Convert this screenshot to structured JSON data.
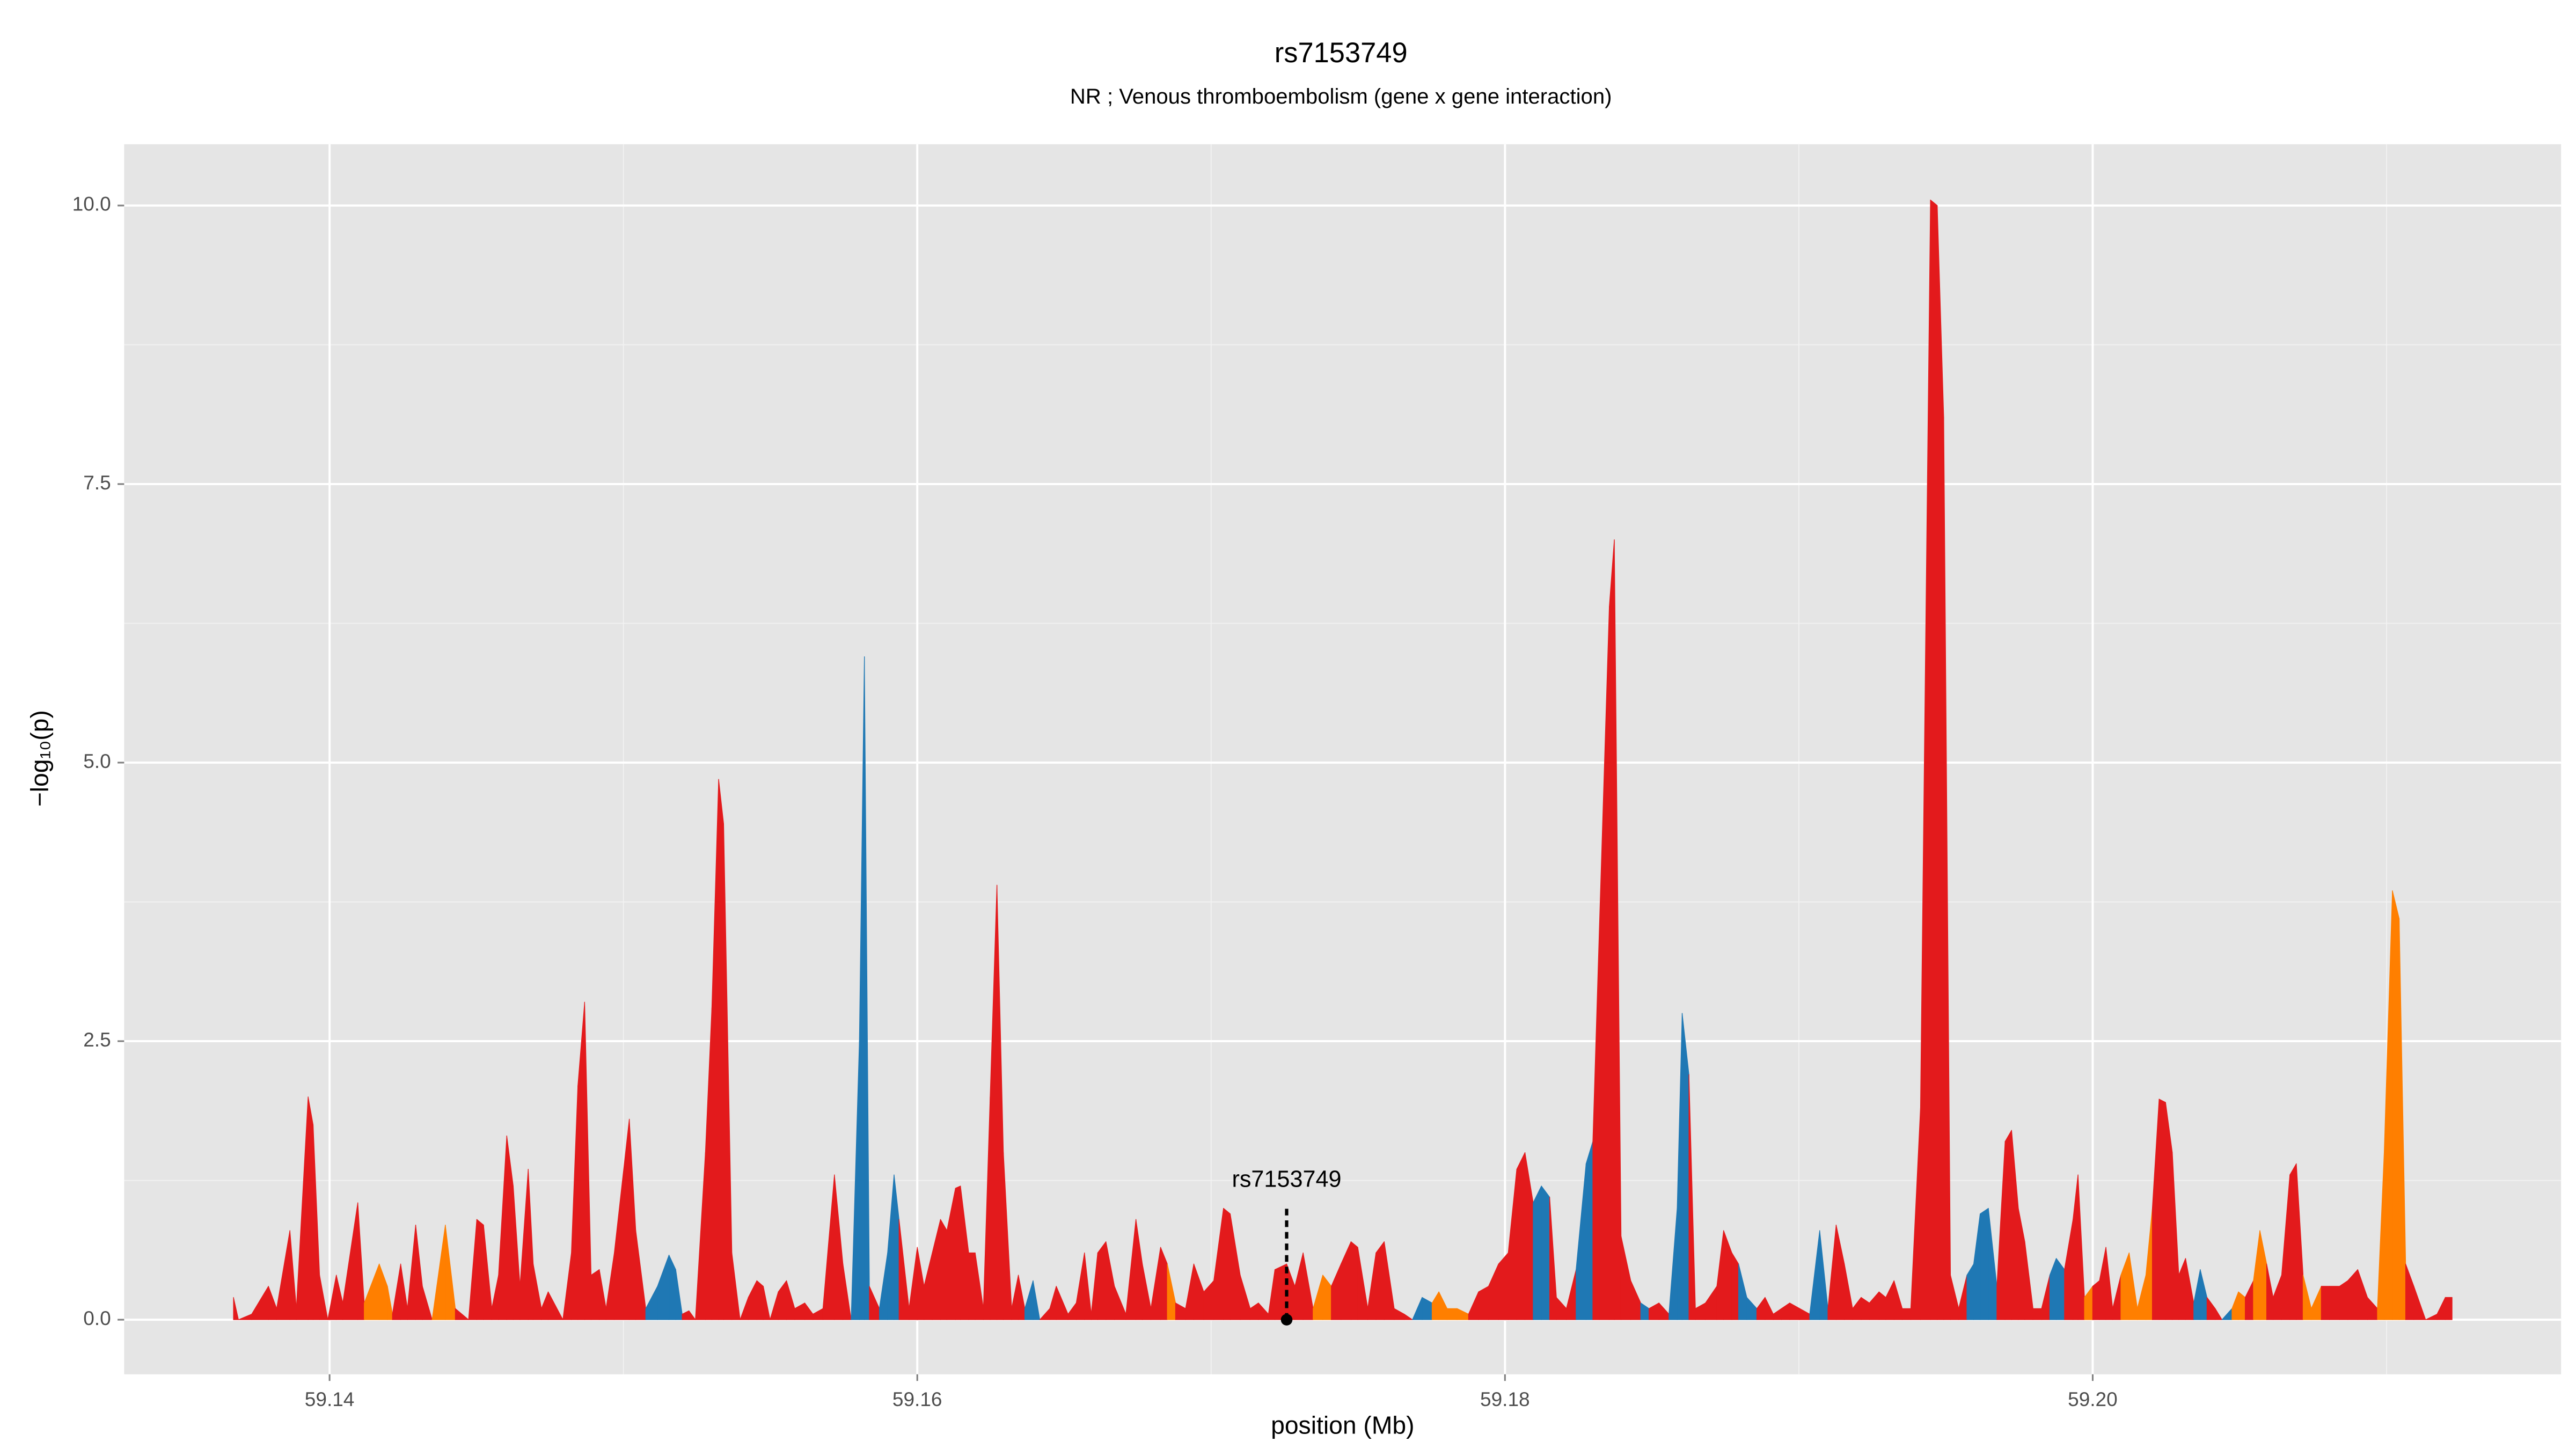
{
  "chart_data": {
    "type": "area",
    "title": "rs7153749",
    "subtitle": "NR ; Venous thromboembolism (gene x gene interaction)",
    "xlabel": "position (Mb)",
    "ylabel": "−log₁₀(p)",
    "xlim": [
      59.13301,
      59.21594
    ],
    "ylim": [
      -0.49,
      10.55
    ],
    "xticks": [
      59.14,
      59.16,
      59.18,
      {
        "value": 59.2,
        "label": "59.20"
      }
    ],
    "yticks": [
      {
        "value": 0,
        "label": "0.0"
      },
      {
        "value": 2.5,
        "label": "2.5"
      },
      {
        "value": 5,
        "label": "5.0"
      },
      {
        "value": 7.5,
        "label": "7.5"
      },
      {
        "value": 10,
        "label": "10.0"
      }
    ],
    "x_minor_ticks": [
      59.15,
      59.17,
      59.19,
      59.21
    ],
    "y_minor_ticks": [
      1.25,
      3.75,
      6.25,
      8.75
    ],
    "grid": true,
    "annotation": {
      "label": "rs7153749",
      "x": 59.17257,
      "y": 0
    },
    "x": [
      59.13673,
      59.1369,
      59.13735,
      59.13792,
      59.1382,
      59.13865,
      59.13887,
      59.13927,
      59.13944,
      59.13966,
      59.13994,
      59.14023,
      59.14045,
      59.14096,
      59.14118,
      59.14169,
      59.14197,
      59.14214,
      59.14242,
      59.14265,
      59.14293,
      59.14316,
      59.14349,
      59.14394,
      59.14428,
      59.14473,
      59.14501,
      59.14524,
      59.14552,
      59.14575,
      59.14603,
      59.14625,
      59.14648,
      59.14676,
      59.14693,
      59.14721,
      59.14744,
      59.14794,
      59.14823,
      59.14845,
      59.14868,
      59.1489,
      59.14918,
      59.14941,
      59.14969,
      59.1502,
      59.15042,
      59.15076,
      59.15116,
      59.15155,
      59.15178,
      59.152,
      59.15223,
      59.15245,
      59.15279,
      59.15301,
      59.15324,
      59.15341,
      59.15369,
      59.15397,
      59.15425,
      59.15454,
      59.15476,
      59.15499,
      59.15527,
      59.15555,
      59.15583,
      59.15617,
      59.15645,
      59.15679,
      59.15718,
      59.15747,
      59.15775,
      59.15803,
      59.1582,
      59.15837,
      59.15871,
      59.15899,
      59.15921,
      59.15938,
      59.15972,
      59.16,
      59.16023,
      59.16051,
      59.16079,
      59.16101,
      59.1613,
      59.16147,
      59.16175,
      59.16197,
      59.16225,
      59.16248,
      59.16271,
      59.16293,
      59.16321,
      59.16344,
      59.16366,
      59.16394,
      59.16417,
      59.16451,
      59.16473,
      59.16513,
      59.16541,
      59.16569,
      59.16592,
      59.16614,
      59.16642,
      59.16671,
      59.1671,
      59.16744,
      59.16766,
      59.16795,
      59.16828,
      59.16851,
      59.16879,
      59.16913,
      59.16941,
      59.16975,
      59.17009,
      59.17042,
      59.17065,
      59.17099,
      59.17133,
      59.17161,
      59.17195,
      59.17217,
      59.17257,
      59.17285,
      59.17313,
      59.17347,
      59.1738,
      59.17409,
      59.17442,
      59.17476,
      59.17499,
      59.17533,
      59.17561,
      59.17589,
      59.17623,
      59.17657,
      59.17685,
      59.17718,
      59.17752,
      59.17775,
      59.17803,
      59.17837,
      59.17876,
      59.1791,
      59.17944,
      59.17978,
      59.18011,
      59.1804,
      59.18068,
      59.18096,
      59.18124,
      59.18152,
      59.18175,
      59.18209,
      59.18242,
      59.18276,
      59.18299,
      59.18321,
      59.18355,
      59.18372,
      59.18395,
      59.18428,
      59.18462,
      59.1849,
      59.18524,
      59.18558,
      59.18586,
      59.18603,
      59.18626,
      59.18648,
      59.18682,
      59.18721,
      59.18744,
      59.18772,
      59.18795,
      59.18823,
      59.18857,
      59.18885,
      59.18913,
      59.18941,
      59.18969,
      59.19003,
      59.19037,
      59.19071,
      59.19099,
      59.19127,
      59.19155,
      59.19183,
      59.19212,
      59.1924,
      59.19273,
      59.19296,
      59.19324,
      59.19352,
      59.19381,
      59.19414,
      59.19448,
      59.19471,
      59.19493,
      59.19516,
      59.19544,
      59.19572,
      59.19595,
      59.19617,
      59.19645,
      59.19674,
      59.19702,
      59.19724,
      59.19747,
      59.19769,
      59.19797,
      59.19826,
      59.19854,
      59.19876,
      59.19904,
      59.19933,
      59.1995,
      59.19972,
      59.2,
      59.20023,
      59.20045,
      59.20068,
      59.20096,
      59.20124,
      59.20152,
      59.20181,
      59.20203,
      59.20226,
      59.20248,
      59.20271,
      59.20293,
      59.20316,
      59.20344,
      59.20366,
      59.20389,
      59.20417,
      59.2044,
      59.20474,
      59.20496,
      59.20519,
      59.20547,
      59.20569,
      59.20592,
      59.20614,
      59.20643,
      59.20671,
      59.20693,
      59.20716,
      59.20744,
      59.20778,
      59.20806,
      59.2084,
      59.20868,
      59.20902,
      59.20935,
      59.20969,
      59.20992,
      59.2102,
      59.21043,
      59.21065,
      59.21093,
      59.21133,
      59.21172,
      59.212,
      59.21223
    ],
    "values": [
      0.2,
      0,
      0.05,
      0.3,
      0.1,
      0.8,
      0.1,
      2,
      1.75,
      0.4,
      0,
      0.4,
      0.15,
      1.05,
      0.15,
      0.5,
      0.3,
      0.05,
      0.5,
      0.1,
      0.85,
      0.3,
      0,
      0.85,
      0.1,
      0,
      0.9,
      0.85,
      0.1,
      0.4,
      1.65,
      1.2,
      0.3,
      1.35,
      0.5,
      0.1,
      0.25,
      0,
      0.6,
      2.1,
      2.85,
      0.4,
      0.45,
      0.1,
      0.6,
      1.8,
      0.8,
      0.1,
      0.3,
      0.58,
      0.45,
      0.05,
      0.08,
      0,
      1.5,
      2.8,
      4.85,
      4.45,
      0.6,
      0,
      0.2,
      0.35,
      0.3,
      0,
      0.25,
      0.35,
      0.1,
      0.15,
      0.05,
      0.1,
      1.3,
      0.5,
      0,
      2.5,
      5.95,
      0.3,
      0.1,
      0.6,
      1.3,
      0.9,
      0.1,
      0.65,
      0.3,
      0.6,
      0.9,
      0.8,
      1.18,
      1.2,
      0.6,
      0.6,
      0.1,
      2,
      3.9,
      1.5,
      0.1,
      0.4,
      0.1,
      0.35,
      0,
      0.1,
      0.3,
      0.05,
      0.15,
      0.6,
      0.05,
      0.6,
      0.7,
      0.3,
      0.05,
      0.9,
      0.5,
      0.1,
      0.65,
      0.5,
      0.15,
      0.1,
      0.5,
      0.25,
      0.35,
      1,
      0.95,
      0.4,
      0.1,
      0.15,
      0.05,
      0.45,
      0.5,
      0.3,
      0.6,
      0.1,
      0.4,
      0.3,
      0.5,
      0.7,
      0.65,
      0.1,
      0.6,
      0.7,
      0.1,
      0.05,
      0,
      0.2,
      0.15,
      0.25,
      0.1,
      0.1,
      0.05,
      0.25,
      0.3,
      0.5,
      0.6,
      1.35,
      1.5,
      1.05,
      1.2,
      1.1,
      0.2,
      0.1,
      0.45,
      1.4,
      1.6,
      3.5,
      6.4,
      7,
      0.75,
      0.35,
      0.15,
      0.1,
      0.15,
      0.05,
      1,
      2.75,
      2.2,
      0.1,
      0.15,
      0.3,
      0.8,
      0.6,
      0.5,
      0.2,
      0.1,
      0.2,
      0.05,
      0.1,
      0.15,
      0.1,
      0.05,
      0.8,
      0.1,
      0.85,
      0.5,
      0.1,
      0.2,
      0.15,
      0.25,
      0.2,
      0.35,
      0.1,
      0.1,
      1.9,
      10.05,
      10,
      8.1,
      0.4,
      0.1,
      0.4,
      0.5,
      0.95,
      1,
      0.3,
      1.6,
      1.7,
      1,
      0.7,
      0.1,
      0.1,
      0.4,
      0.55,
      0.45,
      0.9,
      1.3,
      0.2,
      0.3,
      0.35,
      0.65,
      0.1,
      0.4,
      0.6,
      0.1,
      0.4,
      1,
      1.98,
      1.95,
      1.5,
      0.4,
      0.55,
      0.15,
      0.45,
      0.2,
      0.1,
      0,
      0.1,
      0.25,
      0.2,
      0.35,
      0.8,
      0.5,
      0.2,
      0.4,
      1.3,
      1.4,
      0.4,
      0.1,
      0.3,
      0.3,
      0.3,
      0.35,
      0.45,
      0.2,
      0.1,
      1.5,
      3.85,
      3.6,
      0.5,
      0.3,
      0,
      0.05,
      0.2,
      0.2
    ],
    "point_colors": [
      "#e31a1c",
      "#e31a1c",
      "#e31a1c",
      "#e31a1c",
      "#e31a1c",
      "#e31a1c",
      "#e31a1c",
      "#e31a1c",
      "#e31a1c",
      "#e31a1c",
      "#e31a1c",
      "#e31a1c",
      "#e31a1c",
      "#e31a1c",
      "#e31a1c",
      "#ff7f00",
      "#ff7f00",
      "#e31a1c",
      "#e31a1c",
      "#e31a1c",
      "#e31a1c",
      "#e31a1c",
      "#e31a1c",
      "#ff7f00",
      "#e31a1c",
      "#e31a1c",
      "#e31a1c",
      "#e31a1c",
      "#e31a1c",
      "#e31a1c",
      "#e31a1c",
      "#e31a1c",
      "#e31a1c",
      "#e31a1c",
      "#e31a1c",
      "#e31a1c",
      "#e31a1c",
      "#e31a1c",
      "#e31a1c",
      "#e31a1c",
      "#e31a1c",
      "#e31a1c",
      "#e31a1c",
      "#e31a1c",
      "#e31a1c",
      "#e31a1c",
      "#e31a1c",
      "#e31a1c",
      "#1f78b4",
      "#1f78b4",
      "#1f78b4",
      "#e31a1c",
      "#e31a1c",
      "#e31a1c",
      "#e31a1c",
      "#e31a1c",
      "#e31a1c",
      "#e31a1c",
      "#e31a1c",
      "#e31a1c",
      "#e31a1c",
      "#e31a1c",
      "#e31a1c",
      "#e31a1c",
      "#e31a1c",
      "#e31a1c",
      "#e31a1c",
      "#e31a1c",
      "#e31a1c",
      "#e31a1c",
      "#e31a1c",
      "#e31a1c",
      "#e31a1c",
      "#1f78b4",
      "#1f78b4",
      "#e31a1c",
      "#e31a1c",
      "#1f78b4",
      "#1f78b4",
      "#e31a1c",
      "#e31a1c",
      "#e31a1c",
      "#e31a1c",
      "#e31a1c",
      "#e31a1c",
      "#e31a1c",
      "#e31a1c",
      "#e31a1c",
      "#e31a1c",
      "#e31a1c",
      "#e31a1c",
      "#e31a1c",
      "#e31a1c",
      "#e31a1c",
      "#e31a1c",
      "#e31a1c",
      "#e31a1c",
      "#1f78b4",
      "#e31a1c",
      "#e31a1c",
      "#e31a1c",
      "#e31a1c",
      "#e31a1c",
      "#e31a1c",
      "#e31a1c",
      "#e31a1c",
      "#e31a1c",
      "#e31a1c",
      "#e31a1c",
      "#e31a1c",
      "#e31a1c",
      "#e31a1c",
      "#e31a1c",
      "#ff7f00",
      "#e31a1c",
      "#e31a1c",
      "#e31a1c",
      "#e31a1c",
      "#e31a1c",
      "#e31a1c",
      "#e31a1c",
      "#e31a1c",
      "#e31a1c",
      "#e31a1c",
      "#e31a1c",
      "#e31a1c",
      "#e31a1c",
      "#e31a1c",
      "#e31a1c",
      "#e31a1c",
      "#ff7f00",
      "#e31a1c",
      "#e31a1c",
      "#e31a1c",
      "#e31a1c",
      "#e31a1c",
      "#e31a1c",
      "#e31a1c",
      "#e31a1c",
      "#e31a1c",
      "#e31a1c",
      "#1f78b4",
      "#ff7f00",
      "#ff7f00",
      "#e31a1c",
      "#ff7f00",
      "#e31a1c",
      "#e31a1c",
      "#e31a1c",
      "#e31a1c",
      "#e31a1c",
      "#e31a1c",
      "#e31a1c",
      "#1f78b4",
      "#1f78b4",
      "#e31a1c",
      "#e31a1c",
      "#e31a1c",
      "#e31a1c",
      "#1f78b4",
      "#1f78b4",
      "#e31a1c",
      "#e31a1c",
      "#e31a1c",
      "#e31a1c",
      "#e31a1c",
      "#1f78b4",
      "#e31a1c",
      "#e31a1c",
      "#e31a1c",
      "#1f78b4",
      "#1f78b4",
      "#e31a1c",
      "#e31a1c",
      "#e31a1c",
      "#e31a1c",
      "#e31a1c",
      "#e31a1c",
      "#1f78b4",
      "#1f78b4",
      "#e31a1c",
      "#e31a1c",
      "#e31a1c",
      "#e31a1c",
      "#e31a1c",
      "#e31a1c",
      "#e31a1c",
      "#1f78b4",
      "#e31a1c",
      "#e31a1c",
      "#e31a1c",
      "#e31a1c",
      "#e31a1c",
      "#e31a1c",
      "#e31a1c",
      "#e31a1c",
      "#e31a1c",
      "#e31a1c",
      "#e31a1c",
      "#e31a1c",
      "#e31a1c",
      "#e31a1c",
      "#e31a1c",
      "#e31a1c",
      "#ff7f00",
      "#e31a1c",
      "#1f78b4",
      "#1f78b4",
      "#1f78b4",
      "#e31a1c",
      "#e31a1c",
      "#e31a1c",
      "#e31a1c",
      "#e31a1c",
      "#1f78b4",
      "#e31a1c",
      "#e31a1c",
      "#1f78b4",
      "#e31a1c",
      "#e31a1c",
      "#e31a1c",
      "#e31a1c",
      "#ff7f00",
      "#e31a1c",
      "#e31a1c",
      "#e31a1c",
      "#e31a1c",
      "#ff7f00",
      "#e31a1c",
      "#ff7f00",
      "#ff7f00",
      "#e31a1c",
      "#e31a1c",
      "#e31a1c",
      "#e31a1c",
      "#e31a1c",
      "#e31a1c",
      "#1f78b4",
      "#e31a1c",
      "#e31a1c",
      "#e31a1c",
      "#1f78b4",
      "#ff7f00",
      "#ff7f00",
      "#e31a1c",
      "#ff7f00",
      "#e31a1c",
      "#e31a1c",
      "#e31a1c",
      "#e31a1c",
      "#e31a1c",
      "#ff7f00",
      "#e31a1c",
      "#ff7f00",
      "#e31a1c",
      "#e31a1c",
      "#e31a1c",
      "#e31a1c",
      "#e31a1c",
      "#ff7f00",
      "#ff7f00",
      "#ff7f00",
      "#ff7f00",
      "#e31a1c",
      "#e31a1c",
      "#e31a1c",
      "#e31a1c",
      "#e31a1c",
      "#e31a1c"
    ]
  }
}
